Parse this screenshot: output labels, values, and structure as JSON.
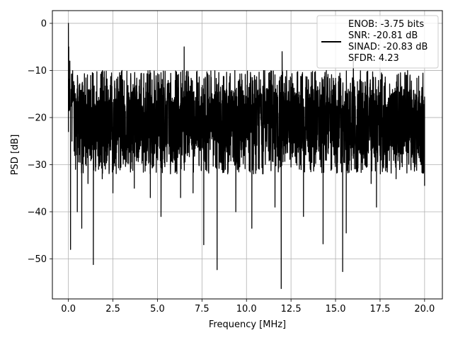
{
  "chart_data": {
    "type": "line",
    "xlabel": "Frequency [MHz]",
    "ylabel": "PSD [dB]",
    "xlim": [
      -0.9,
      21.0
    ],
    "ylim": [
      -58.5,
      2.7
    ],
    "xticks": [
      0.0,
      2.5,
      5.0,
      7.5,
      10.0,
      12.5,
      15.0,
      17.5,
      20.0
    ],
    "xtick_labels": [
      "0.0",
      "2.5",
      "5.0",
      "7.5",
      "10.0",
      "12.5",
      "15.0",
      "17.5",
      "20.0"
    ],
    "yticks": [
      0,
      -10,
      -20,
      -30,
      -40,
      -50
    ],
    "ytick_labels": [
      "0",
      "−10",
      "−20",
      "−30",
      "−40",
      "−50"
    ],
    "grid": true,
    "legend_position": "top-right",
    "legend": {
      "lines": [
        "ENOB: -3.75 bits",
        "SNR: -20.81 dB",
        "SINAD: -20.83 dB",
        "SFDR: 4.23"
      ]
    },
    "series": [
      {
        "color": "#000000",
        "noise_floor_db": -21,
        "noise_upper_db": -10,
        "noise_lower_db": -32,
        "points": [
          [
            0.0,
            -23
          ],
          [
            0.0,
            0
          ],
          [
            0.02,
            -5
          ],
          [
            0.05,
            -12
          ],
          [
            0.08,
            -8
          ],
          [
            0.1,
            -18
          ],
          [
            0.12,
            -48
          ],
          [
            0.15,
            -14
          ],
          [
            0.2,
            -25
          ],
          [
            0.3,
            -16
          ],
          [
            0.4,
            -31
          ],
          [
            0.5,
            -40
          ],
          [
            0.6,
            -15
          ],
          [
            0.75,
            -43.5
          ],
          [
            0.9,
            -17
          ],
          [
            1.1,
            -34
          ],
          [
            1.4,
            -51.2
          ],
          [
            1.6,
            -16
          ],
          [
            1.9,
            -33
          ],
          [
            2.2,
            -28
          ],
          [
            2.5,
            -36
          ],
          [
            3.0,
            -20
          ],
          [
            3.7,
            -35
          ],
          [
            4.6,
            -37
          ],
          [
            5.0,
            -14
          ],
          [
            5.2,
            -41
          ],
          [
            6.0,
            -22
          ],
          [
            6.3,
            -37
          ],
          [
            6.5,
            -5
          ],
          [
            7.0,
            -36
          ],
          [
            7.5,
            -20
          ],
          [
            7.6,
            -47
          ],
          [
            7.9,
            -11
          ],
          [
            8.35,
            -52.3
          ],
          [
            8.6,
            -22
          ],
          [
            9.4,
            -40
          ],
          [
            10.0,
            -16
          ],
          [
            10.3,
            -43.5
          ],
          [
            10.7,
            -22
          ],
          [
            11.6,
            -39
          ],
          [
            11.95,
            -56.3
          ],
          [
            12.0,
            -6
          ],
          [
            12.4,
            -24
          ],
          [
            13.2,
            -41
          ],
          [
            13.7,
            -18
          ],
          [
            14.3,
            -46.8
          ],
          [
            15.0,
            -20
          ],
          [
            15.4,
            -52.7
          ],
          [
            15.6,
            -44.5
          ],
          [
            16.0,
            -8
          ],
          [
            16.6,
            -24
          ],
          [
            17.0,
            -34
          ],
          [
            17.3,
            -39
          ],
          [
            17.6,
            -14
          ],
          [
            18.4,
            -33
          ],
          [
            19.0,
            -21
          ],
          [
            19.8,
            -30
          ],
          [
            20.0,
            -34.5
          ]
        ]
      }
    ]
  }
}
